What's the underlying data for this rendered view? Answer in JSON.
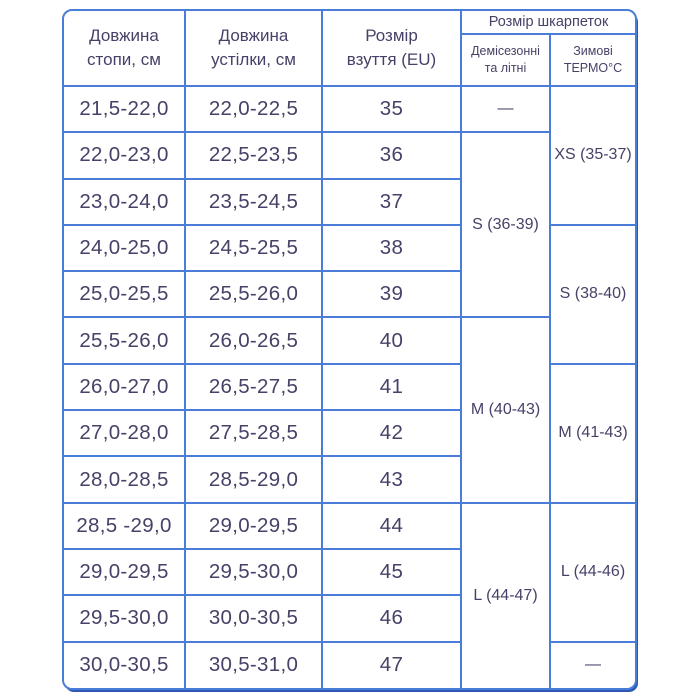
{
  "palette": {
    "border_blue": "#4a7dd7",
    "shadow_blue": "#2f57b7",
    "text_navy": "#474168",
    "background": "#ffffff"
  },
  "table": {
    "header": {
      "foot": "Довжина\nстопи, см",
      "insole": "Довжина\nустілки, см",
      "shoe": "Розмір\nвзуття (EU)",
      "socks_group": "Розмір шкарпеток",
      "socks_demi": "Демісезонні\nта літні",
      "socks_winter": "Зимові\nТЕРМО°С"
    },
    "rows": [
      {
        "foot": "21,5-22,0",
        "insole": "22,0-22,5",
        "size": "35"
      },
      {
        "foot": "22,0-23,0",
        "insole": "22,5-23,5",
        "size": "36"
      },
      {
        "foot": "23,0-24,0",
        "insole": "23,5-24,5",
        "size": "37"
      },
      {
        "foot": "24,0-25,0",
        "insole": "24,5-25,5",
        "size": "38"
      },
      {
        "foot": "25,0-25,5",
        "insole": "25,5-26,0",
        "size": "39"
      },
      {
        "foot": "25,5-26,0",
        "insole": "26,0-26,5",
        "size": "40"
      },
      {
        "foot": "26,0-27,0",
        "insole": "26,5-27,5",
        "size": "41"
      },
      {
        "foot": "27,0-28,0",
        "insole": "27,5-28,5",
        "size": "42"
      },
      {
        "foot": "28,0-28,5",
        "insole": "28,5-29,0",
        "size": "43"
      },
      {
        "foot": "28,5 -29,0",
        "insole": "29,0-29,5",
        "size": "44"
      },
      {
        "foot": "29,0-29,5",
        "insole": "29,5-30,0",
        "size": "45"
      },
      {
        "foot": "29,5-30,0",
        "insole": "30,0-30,5",
        "size": "46"
      },
      {
        "foot": "30,0-30,5",
        "insole": "30,5-31,0",
        "size": "47"
      }
    ],
    "sock_demi": [
      "—",
      "S (36-39)",
      "M (40-43)",
      "L (44-47)"
    ],
    "sock_winter": [
      "XS (35-37)",
      "S (38-40)",
      "M (41-43)",
      "L (44-46)",
      "—"
    ]
  }
}
